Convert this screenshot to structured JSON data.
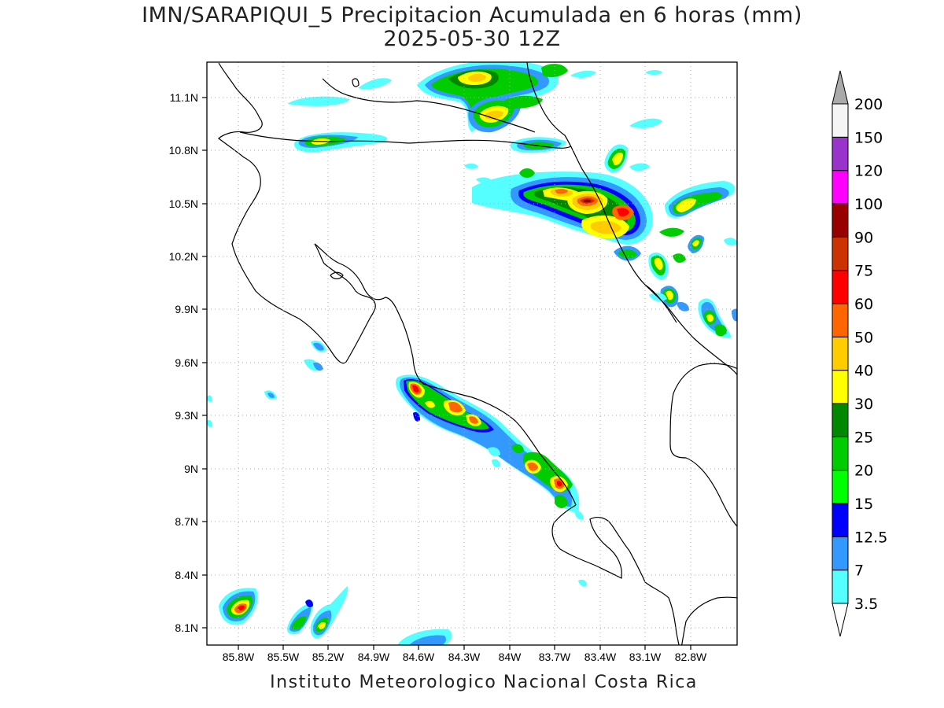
{
  "title": {
    "line1": "IMN/SARAPIQUI_5 Precipitacion Acumulada en 6 horas (mm)",
    "line2": "2025-05-30 12Z"
  },
  "credit": "Instituto Meteorologico Nacional Costa Rica",
  "axes": {
    "lat_labels": [
      "11.1N",
      "10.8N",
      "10.5N",
      "10.2N",
      "9.9N",
      "9.6N",
      "9.3N",
      "9N",
      "8.7N",
      "8.4N",
      "8.1N"
    ],
    "lon_labels": [
      "85.8W",
      "85.5W",
      "85.2W",
      "84.9W",
      "84.6W",
      "84.3W",
      "84W",
      "83.7W",
      "83.4W",
      "83.1W",
      "82.8W"
    ]
  },
  "colorbar": {
    "labels": [
      "3.5",
      "7",
      "12.5",
      "15",
      "20",
      "25",
      "30",
      "40",
      "50",
      "60",
      "75",
      "90",
      "100",
      "120",
      "150",
      "200"
    ],
    "colors": [
      "#55ffff",
      "#3399ff",
      "#0000ff",
      "#00ff00",
      "#00cc00",
      "#008800",
      "#ffff00",
      "#ffcc00",
      "#ff6600",
      "#ff0000",
      "#cc3300",
      "#990000",
      "#ff00ff",
      "#9933cc",
      "#f5f5f5"
    ],
    "over_color": "#aaaaaa"
  }
}
